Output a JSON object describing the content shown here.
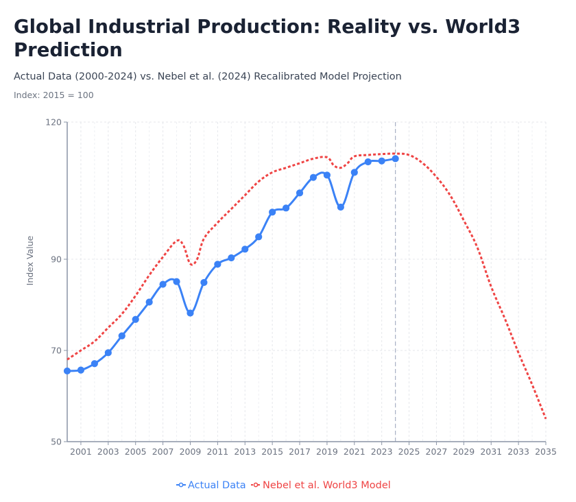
{
  "header": {
    "title": "Global Industrial Production: Reality vs. World3 Prediction",
    "subtitle": "Actual Data (2000-2024) vs. Nebel et al. (2024) Recalibrated Model Projection",
    "note": "Index: 2015 = 100"
  },
  "chart_data": {
    "type": "line",
    "ylabel": "Index Value",
    "xlim": [
      2000,
      2035
    ],
    "ylim": [
      50,
      120
    ],
    "x_ticks": [
      2001,
      2003,
      2005,
      2007,
      2009,
      2011,
      2013,
      2015,
      2017,
      2019,
      2021,
      2023,
      2025,
      2027,
      2029,
      2031,
      2033,
      2035
    ],
    "y_ticks": [
      50,
      70,
      90,
      120
    ],
    "grid": true,
    "legend_position": "bottom-center",
    "reference_line_x": 2024,
    "series": [
      {
        "name": "Actual Data",
        "color": "#3b82f6",
        "style": "solid-markers",
        "x": [
          2000,
          2001,
          2002,
          2003,
          2004,
          2005,
          2006,
          2007,
          2008,
          2009,
          2010,
          2011,
          2012,
          2013,
          2014,
          2015,
          2016,
          2017,
          2018,
          2019,
          2020,
          2021,
          2022,
          2023,
          2024
        ],
        "values": [
          65.5,
          65.7,
          67.1,
          69.5,
          73.2,
          76.8,
          80.6,
          84.5,
          85.1,
          78.2,
          84.9,
          88.9,
          90.3,
          92.2,
          94.9,
          100.3,
          101.2,
          104.5,
          107.9,
          108.4,
          101.4,
          109.0,
          111.3,
          111.5,
          112.0
        ]
      },
      {
        "name": "Nebel et al. World3 Model",
        "color": "#ef4444",
        "style": "dashed",
        "x": [
          2000,
          2001,
          2002,
          2003,
          2004,
          2005,
          2006,
          2007,
          2008,
          2008.5,
          2009,
          2009.5,
          2010,
          2011,
          2012,
          2013,
          2014,
          2015,
          2016,
          2017,
          2018,
          2019,
          2019.5,
          2020,
          2020.5,
          2021,
          2022,
          2023,
          2024,
          2025,
          2026,
          2027,
          2028,
          2029,
          2030,
          2031,
          2032,
          2033,
          2034,
          2035
        ],
        "values": [
          68.0,
          70.0,
          72.0,
          75.0,
          78.0,
          82.0,
          86.5,
          90.5,
          94.0,
          93.0,
          89.0,
          90.0,
          94.5,
          98.0,
          101.0,
          104.0,
          107.0,
          109.0,
          110.0,
          111.0,
          112.0,
          112.3,
          110.5,
          110.0,
          111.0,
          112.5,
          112.8,
          113.0,
          113.1,
          112.8,
          111.0,
          108.0,
          104.0,
          98.5,
          92.5,
          84.0,
          77.0,
          69.5,
          62.5,
          55.0
        ]
      }
    ]
  }
}
